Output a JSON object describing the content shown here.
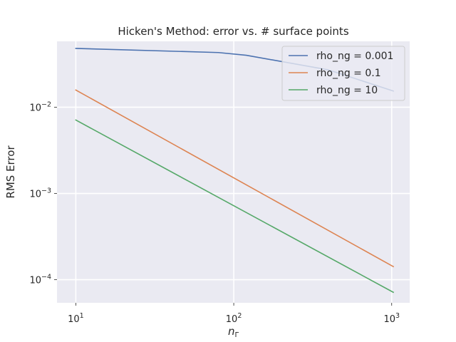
{
  "chart_data": {
    "type": "line",
    "title": "Hicken's Method: error vs. # surface points",
    "xlabel_base": "n",
    "xlabel_sub": "Γ",
    "ylabel": "RMS Error",
    "xscale": "log",
    "yscale": "log",
    "xlim": [
      7.6,
      1300
    ],
    "ylim": [
      5.4e-05,
      0.058
    ],
    "grid": true,
    "legend_position": "top-right",
    "xticks": [
      {
        "value": 10,
        "base": "10",
        "exp": "1"
      },
      {
        "value": 100,
        "base": "10",
        "exp": "2"
      },
      {
        "value": 1000,
        "base": "10",
        "exp": "3"
      }
    ],
    "yticks": [
      {
        "value": 0.0001,
        "base": "10",
        "exp": "−4"
      },
      {
        "value": 0.001,
        "base": "10",
        "exp": "−3"
      },
      {
        "value": 0.01,
        "base": "10",
        "exp": "−2"
      }
    ],
    "series": [
      {
        "name": "rho_ng = 0.001",
        "color": "#4c72b0",
        "x": [
          10,
          80,
          120,
          400,
          1024
        ],
        "y": [
          0.048,
          0.043,
          0.04,
          0.027,
          0.0154
        ]
      },
      {
        "name": "rho_ng = 0.1",
        "color": "#dd8452",
        "x": [
          10,
          1024
        ],
        "y": [
          0.0158,
          0.000142
        ]
      },
      {
        "name": "rho_ng = 10",
        "color": "#55a868",
        "x": [
          10,
          1024
        ],
        "y": [
          0.0071,
          7.15e-05
        ]
      }
    ]
  }
}
